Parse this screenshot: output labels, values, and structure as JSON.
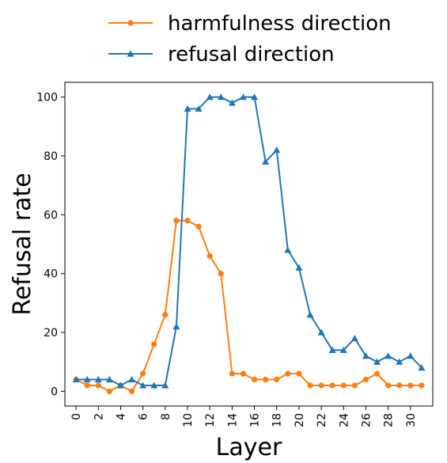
{
  "chart_data": {
    "type": "line",
    "xlabel": "Layer",
    "ylabel": "Refusal rate",
    "xlim": [
      -1,
      32
    ],
    "ylim": [
      -5,
      105
    ],
    "xticks": [
      0,
      2,
      4,
      6,
      8,
      10,
      12,
      14,
      16,
      18,
      20,
      22,
      24,
      26,
      28,
      30
    ],
    "yticks": [
      0,
      20,
      40,
      60,
      80,
      100
    ],
    "grid": false,
    "legend_position": "top",
    "x": [
      0,
      1,
      2,
      3,
      4,
      5,
      6,
      7,
      8,
      9,
      10,
      11,
      12,
      13,
      14,
      15,
      16,
      17,
      18,
      19,
      20,
      21,
      22,
      23,
      24,
      25,
      26,
      27,
      28,
      29,
      30,
      31
    ],
    "series": [
      {
        "name": "harmfulness direction",
        "color": "#ff7f0e",
        "marker": "circle",
        "values": [
          4,
          2,
          2,
          0,
          2,
          0,
          6,
          16,
          26,
          58,
          58,
          56,
          46,
          40,
          6,
          6,
          4,
          4,
          4,
          6,
          6,
          2,
          2,
          2,
          2,
          2,
          4,
          6,
          2,
          2,
          2,
          2
        ]
      },
      {
        "name": "refusal direction",
        "color": "#1f77b4",
        "marker": "triangle",
        "values": [
          4,
          4,
          4,
          4,
          2,
          4,
          2,
          2,
          2,
          22,
          96,
          96,
          100,
          100,
          98,
          100,
          100,
          78,
          82,
          48,
          42,
          26,
          20,
          14,
          14,
          18,
          12,
          10,
          12,
          10,
          12,
          8
        ]
      }
    ]
  }
}
